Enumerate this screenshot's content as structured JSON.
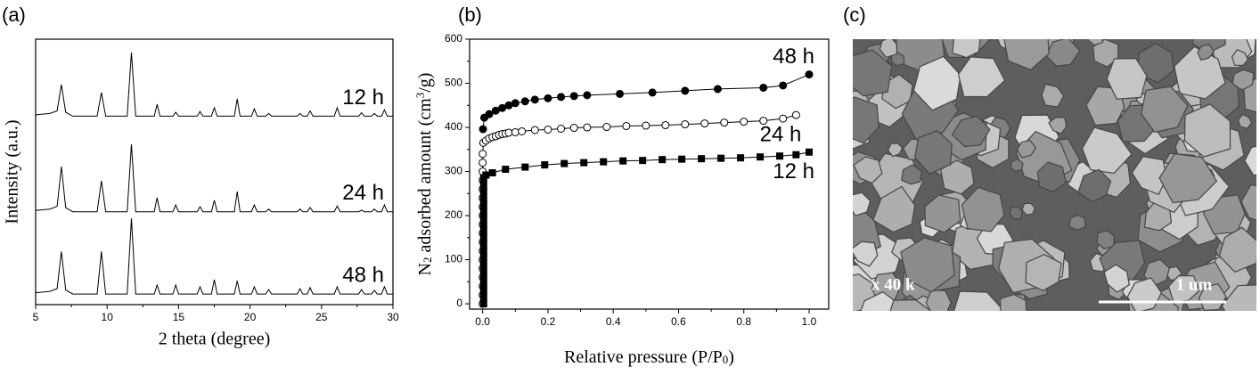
{
  "chart_data": [
    {
      "type": "line",
      "panel_label": "(a)",
      "xlabel": "2 theta (degree)",
      "ylabel": "Intensity (a.u.)",
      "x": [
        5,
        6.0,
        6.5,
        6.8,
        7.1,
        7.6,
        9.3,
        9.6,
        9.9,
        11.4,
        11.7,
        12.0,
        13.3,
        13.5,
        13.7,
        14.6,
        14.8,
        15.0,
        16.3,
        16.5,
        16.7,
        17.3,
        17.5,
        17.7,
        18.9,
        19.1,
        19.3,
        20.1,
        20.3,
        20.5,
        21.1,
        21.3,
        21.5,
        23.3,
        23.5,
        23.7,
        24.0,
        24.2,
        24.4,
        25.9,
        26.1,
        26.3,
        27.6,
        27.8,
        28.0,
        28.5,
        28.7,
        28.9,
        29.2,
        29.4,
        29.6,
        30
      ],
      "series": [
        {
          "name": "12 h",
          "color": "#000000",
          "values": [
            71.5,
            72,
            73,
            82.9,
            72.5,
            71,
            71,
            79.9,
            71,
            71,
            95,
            71,
            71,
            75.5,
            71,
            71,
            72.5,
            71,
            71,
            72.8,
            71,
            71,
            74.2,
            71,
            71,
            77.5,
            71,
            71,
            73.8,
            71,
            71,
            72,
            71,
            71,
            72,
            71,
            71,
            73,
            71,
            71,
            74.2,
            71,
            71,
            72.3,
            71,
            71,
            72,
            71,
            71,
            73.4,
            71,
            71
          ]
        },
        {
          "name": "24 h",
          "color": "#000000",
          "values": [
            35.5,
            36,
            37,
            52,
            36.5,
            35,
            35,
            46.6,
            35,
            35,
            60.4,
            35,
            35,
            40.3,
            35,
            35,
            37.6,
            35,
            35,
            36.9,
            35,
            35,
            39.3,
            35,
            35,
            42.6,
            35,
            35,
            37.6,
            35,
            35,
            36,
            35,
            35,
            36,
            35,
            35,
            36.6,
            35,
            35,
            37.2,
            35,
            35,
            35.6,
            35,
            35,
            36,
            35,
            35,
            37.6,
            35,
            35
          ]
        },
        {
          "name": "48 h",
          "color": "#000000",
          "values": [
            4.5,
            5,
            6,
            20,
            5.5,
            4,
            4,
            20,
            4,
            4,
            32.5,
            4,
            4,
            7.4,
            4,
            4,
            7.4,
            4,
            4,
            6.7,
            4,
            4,
            9.4,
            4,
            4,
            9,
            4,
            4,
            6.7,
            4,
            4,
            5.7,
            4,
            4,
            6,
            4,
            4,
            6.4,
            4,
            4,
            6.7,
            4,
            4,
            5.7,
            4,
            4,
            5.4,
            4,
            4,
            6.7,
            4,
            4
          ]
        }
      ],
      "xlim": [
        5,
        30
      ],
      "xticks": [
        5,
        10,
        15,
        20,
        25,
        30
      ],
      "ylim": [
        0,
        100
      ]
    },
    {
      "type": "scatter",
      "panel_label": "(b)",
      "xlabel": [
        "Relative pressure (P/P",
        "0",
        ")"
      ],
      "ylabel": [
        "N",
        "2",
        " adsorbed amount (cm",
        "3",
        "/g)"
      ],
      "series": [
        {
          "name": "48 h",
          "color": "#000000",
          "marker": "circle",
          "x": [
            0.001,
            0.005,
            0.02,
            0.04,
            0.06,
            0.08,
            0.1,
            0.13,
            0.16,
            0.2,
            0.24,
            0.28,
            0.32,
            0.42,
            0.52,
            0.62,
            0.72,
            0.86,
            0.92,
            1.0
          ],
          "values": [
            396,
            422,
            430,
            438,
            444,
            450,
            455,
            459,
            463,
            466,
            469,
            471,
            473,
            476,
            479,
            483,
            487,
            490,
            495,
            520
          ]
        },
        {
          "name": "24 h",
          "color": "#000000",
          "marker": "circle-open",
          "x": [
            0,
            0,
            0,
            0,
            0,
            0,
            0,
            0,
            0,
            0,
            0,
            0,
            0,
            0,
            0,
            0,
            0,
            0,
            0.002,
            0.01,
            0.02,
            0.03,
            0.04,
            0.05,
            0.06,
            0.07,
            0.08,
            0.1,
            0.12,
            0.16,
            0.2,
            0.24,
            0.28,
            0.32,
            0.38,
            0.44,
            0.5,
            0.56,
            0.62,
            0.68,
            0.74,
            0.8,
            0.86,
            0.92,
            0.96
          ],
          "values": [
            0,
            20,
            40,
            60,
            80,
            100,
            120,
            140,
            160,
            180,
            200,
            220,
            240,
            260,
            280,
            300,
            320,
            340,
            365,
            370,
            375,
            378,
            380,
            383,
            385,
            386,
            388,
            389,
            391,
            394,
            395,
            397,
            399,
            400,
            401,
            403,
            404,
            405,
            407,
            409,
            411,
            413,
            415,
            420,
            428
          ]
        },
        {
          "name": "12 h",
          "color": "#000000",
          "marker": "square",
          "x": [
            0.003,
            0.003,
            0.003,
            0.003,
            0.003,
            0.003,
            0.003,
            0.003,
            0.003,
            0.003,
            0.003,
            0.003,
            0.003,
            0.003,
            0.003,
            0.003,
            0.003,
            0.003,
            0.003,
            0.003,
            0.01,
            0.03,
            0.07,
            0.13,
            0.19,
            0.25,
            0.31,
            0.37,
            0.43,
            0.49,
            0.55,
            0.61,
            0.67,
            0.73,
            0.79,
            0.85,
            0.91,
            0.96,
            1.0
          ],
          "values": [
            0,
            15,
            30,
            45,
            60,
            75,
            90,
            105,
            120,
            135,
            150,
            165,
            180,
            195,
            210,
            225,
            240,
            255,
            270,
            285,
            292,
            297,
            305,
            310,
            315,
            318,
            320,
            322,
            324,
            325,
            327,
            328,
            329,
            330,
            331,
            333,
            335,
            338,
            344
          ]
        }
      ],
      "xlim": [
        -0.04,
        1.06
      ],
      "xticks": [
        {
          "value": 0,
          "label": "0.0"
        },
        0.2,
        0.4,
        0.6,
        0.8,
        {
          "value": 1,
          "label": "1.0"
        }
      ],
      "ylim": [
        -12,
        600
      ],
      "yticks": [
        0,
        100,
        200,
        300,
        400,
        500,
        600
      ]
    }
  ],
  "panel_c": {
    "panel_label": "(c)",
    "magnification": "x 40 k",
    "scale_bar": "1 um"
  }
}
